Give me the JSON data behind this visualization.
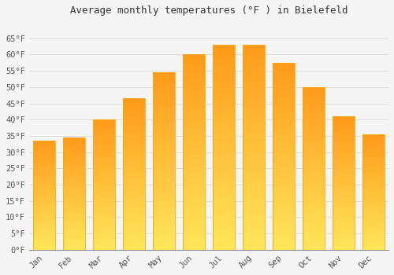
{
  "title": "Average monthly temperatures (°F ) in Bielefeld",
  "months": [
    "Jan",
    "Feb",
    "Mar",
    "Apr",
    "May",
    "Jun",
    "Jul",
    "Aug",
    "Sep",
    "Oct",
    "Nov",
    "Dec"
  ],
  "values": [
    33.5,
    34.5,
    40.0,
    46.5,
    54.5,
    60.0,
    63.0,
    63.0,
    57.5,
    50.0,
    41.0,
    35.5
  ],
  "bar_color_top": "#FFA500",
  "bar_color_bottom": "#FFD700",
  "bar_edge_color": "#FFA500",
  "background_color": "#f5f5f5",
  "plot_bg_color": "#f5f5f5",
  "grid_color": "#dddddd",
  "ylim": [
    0,
    70
  ],
  "yticks": [
    0,
    5,
    10,
    15,
    20,
    25,
    30,
    35,
    40,
    45,
    50,
    55,
    60,
    65
  ],
  "ytick_labels": [
    "0°F",
    "5°F",
    "10°F",
    "15°F",
    "20°F",
    "25°F",
    "30°F",
    "35°F",
    "40°F",
    "45°F",
    "50°F",
    "55°F",
    "60°F",
    "65°F"
  ],
  "title_fontsize": 9,
  "tick_fontsize": 7.5,
  "font_color": "#555555",
  "title_color": "#333333"
}
